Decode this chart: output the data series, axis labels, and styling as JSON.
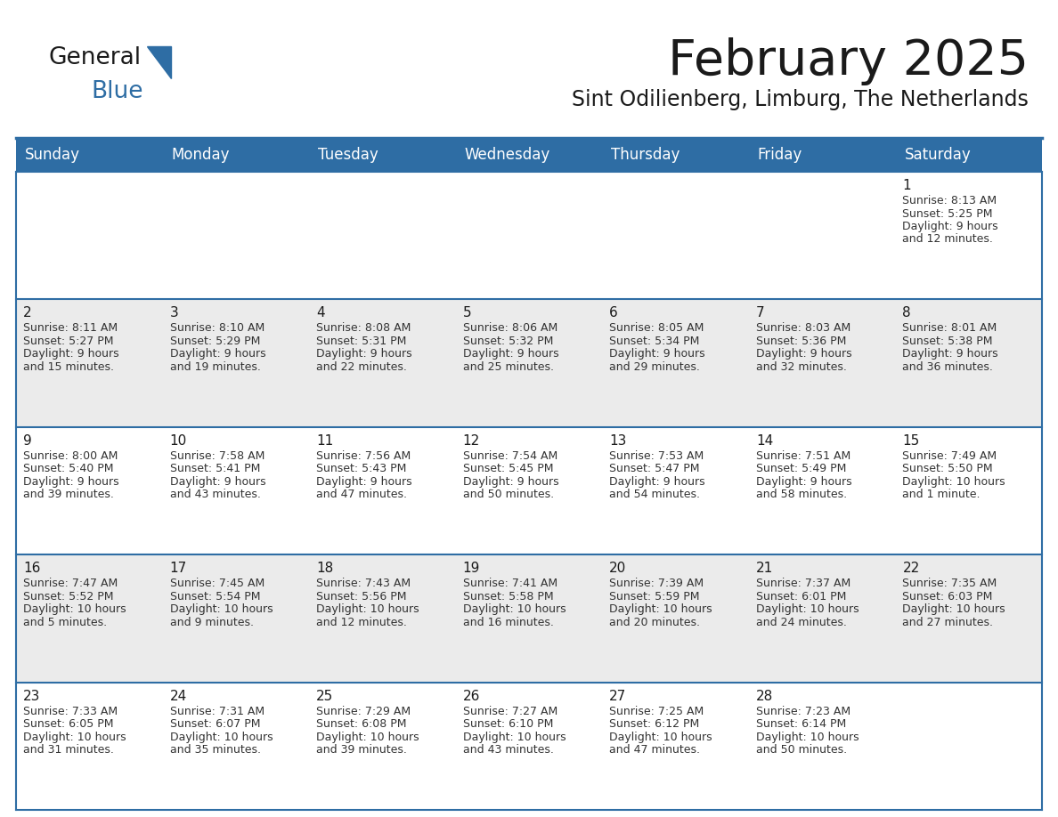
{
  "title": "February 2025",
  "subtitle": "Sint Odilienberg, Limburg, The Netherlands",
  "header_bg": "#2E6DA4",
  "header_text_color": "#FFFFFF",
  "row_bg_even": "#FFFFFF",
  "row_bg_odd": "#EBEBEB",
  "day_number_color": "#1a1a1a",
  "cell_text_color": "#333333",
  "border_color": "#2E6DA4",
  "weekdays": [
    "Sunday",
    "Monday",
    "Tuesday",
    "Wednesday",
    "Thursday",
    "Friday",
    "Saturday"
  ],
  "days": [
    {
      "day": 1,
      "col": 6,
      "row": 0,
      "sunrise": "8:13 AM",
      "sunset": "5:25 PM",
      "daylight": "9 hours and 12 minutes."
    },
    {
      "day": 2,
      "col": 0,
      "row": 1,
      "sunrise": "8:11 AM",
      "sunset": "5:27 PM",
      "daylight": "9 hours and 15 minutes."
    },
    {
      "day": 3,
      "col": 1,
      "row": 1,
      "sunrise": "8:10 AM",
      "sunset": "5:29 PM",
      "daylight": "9 hours and 19 minutes."
    },
    {
      "day": 4,
      "col": 2,
      "row": 1,
      "sunrise": "8:08 AM",
      "sunset": "5:31 PM",
      "daylight": "9 hours and 22 minutes."
    },
    {
      "day": 5,
      "col": 3,
      "row": 1,
      "sunrise": "8:06 AM",
      "sunset": "5:32 PM",
      "daylight": "9 hours and 25 minutes."
    },
    {
      "day": 6,
      "col": 4,
      "row": 1,
      "sunrise": "8:05 AM",
      "sunset": "5:34 PM",
      "daylight": "9 hours and 29 minutes."
    },
    {
      "day": 7,
      "col": 5,
      "row": 1,
      "sunrise": "8:03 AM",
      "sunset": "5:36 PM",
      "daylight": "9 hours and 32 minutes."
    },
    {
      "day": 8,
      "col": 6,
      "row": 1,
      "sunrise": "8:01 AM",
      "sunset": "5:38 PM",
      "daylight": "9 hours and 36 minutes."
    },
    {
      "day": 9,
      "col": 0,
      "row": 2,
      "sunrise": "8:00 AM",
      "sunset": "5:40 PM",
      "daylight": "9 hours and 39 minutes."
    },
    {
      "day": 10,
      "col": 1,
      "row": 2,
      "sunrise": "7:58 AM",
      "sunset": "5:41 PM",
      "daylight": "9 hours and 43 minutes."
    },
    {
      "day": 11,
      "col": 2,
      "row": 2,
      "sunrise": "7:56 AM",
      "sunset": "5:43 PM",
      "daylight": "9 hours and 47 minutes."
    },
    {
      "day": 12,
      "col": 3,
      "row": 2,
      "sunrise": "7:54 AM",
      "sunset": "5:45 PM",
      "daylight": "9 hours and 50 minutes."
    },
    {
      "day": 13,
      "col": 4,
      "row": 2,
      "sunrise": "7:53 AM",
      "sunset": "5:47 PM",
      "daylight": "9 hours and 54 minutes."
    },
    {
      "day": 14,
      "col": 5,
      "row": 2,
      "sunrise": "7:51 AM",
      "sunset": "5:49 PM",
      "daylight": "9 hours and 58 minutes."
    },
    {
      "day": 15,
      "col": 6,
      "row": 2,
      "sunrise": "7:49 AM",
      "sunset": "5:50 PM",
      "daylight": "10 hours and 1 minute."
    },
    {
      "day": 16,
      "col": 0,
      "row": 3,
      "sunrise": "7:47 AM",
      "sunset": "5:52 PM",
      "daylight": "10 hours and 5 minutes."
    },
    {
      "day": 17,
      "col": 1,
      "row": 3,
      "sunrise": "7:45 AM",
      "sunset": "5:54 PM",
      "daylight": "10 hours and 9 minutes."
    },
    {
      "day": 18,
      "col": 2,
      "row": 3,
      "sunrise": "7:43 AM",
      "sunset": "5:56 PM",
      "daylight": "10 hours and 12 minutes."
    },
    {
      "day": 19,
      "col": 3,
      "row": 3,
      "sunrise": "7:41 AM",
      "sunset": "5:58 PM",
      "daylight": "10 hours and 16 minutes."
    },
    {
      "day": 20,
      "col": 4,
      "row": 3,
      "sunrise": "7:39 AM",
      "sunset": "5:59 PM",
      "daylight": "10 hours and 20 minutes."
    },
    {
      "day": 21,
      "col": 5,
      "row": 3,
      "sunrise": "7:37 AM",
      "sunset": "6:01 PM",
      "daylight": "10 hours and 24 minutes."
    },
    {
      "day": 22,
      "col": 6,
      "row": 3,
      "sunrise": "7:35 AM",
      "sunset": "6:03 PM",
      "daylight": "10 hours and 27 minutes."
    },
    {
      "day": 23,
      "col": 0,
      "row": 4,
      "sunrise": "7:33 AM",
      "sunset": "6:05 PM",
      "daylight": "10 hours and 31 minutes."
    },
    {
      "day": 24,
      "col": 1,
      "row": 4,
      "sunrise": "7:31 AM",
      "sunset": "6:07 PM",
      "daylight": "10 hours and 35 minutes."
    },
    {
      "day": 25,
      "col": 2,
      "row": 4,
      "sunrise": "7:29 AM",
      "sunset": "6:08 PM",
      "daylight": "10 hours and 39 minutes."
    },
    {
      "day": 26,
      "col": 3,
      "row": 4,
      "sunrise": "7:27 AM",
      "sunset": "6:10 PM",
      "daylight": "10 hours and 43 minutes."
    },
    {
      "day": 27,
      "col": 4,
      "row": 4,
      "sunrise": "7:25 AM",
      "sunset": "6:12 PM",
      "daylight": "10 hours and 47 minutes."
    },
    {
      "day": 28,
      "col": 5,
      "row": 4,
      "sunrise": "7:23 AM",
      "sunset": "6:14 PM",
      "daylight": "10 hours and 50 minutes."
    }
  ],
  "num_rows": 5,
  "num_cols": 7,
  "logo_text1": "General",
  "logo_text2": "Blue",
  "logo_color1": "#1a1a1a",
  "logo_color2": "#2E6DA4",
  "logo_triangle_color": "#2E6DA4",
  "title_fontsize": 40,
  "subtitle_fontsize": 17,
  "header_fontsize": 12,
  "day_num_fontsize": 11,
  "cell_text_fontsize": 9
}
